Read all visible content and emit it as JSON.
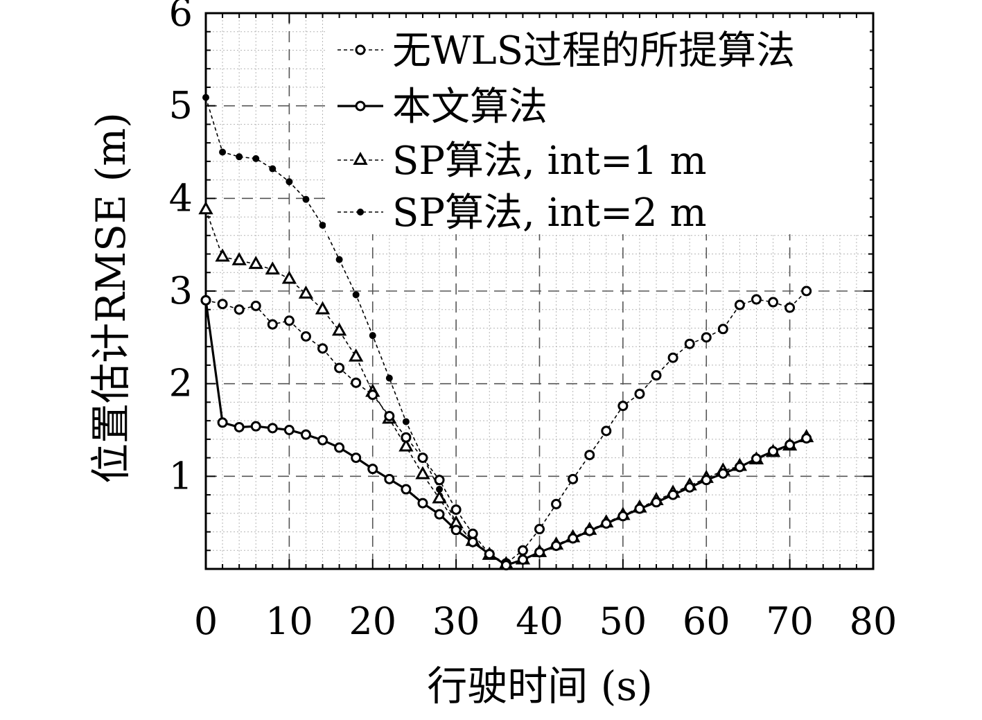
{
  "chart_data": {
    "type": "line",
    "xlabel": "行驶时间 (s)",
    "ylabel": "位置估计RMSE (m)",
    "xlim": [
      0,
      80
    ],
    "ylim": [
      0,
      6
    ],
    "x_ticks": [
      "0",
      "10",
      "20",
      "30",
      "40",
      "50",
      "60",
      "70",
      "80"
    ],
    "y_ticks": [
      "1",
      "2",
      "3",
      "4",
      "5",
      "6"
    ],
    "grid": true,
    "legend_position": "top-right",
    "series": [
      {
        "name": "无WLS过程的所提算法",
        "line": "dashed",
        "marker": "open-circle",
        "color": "#000000",
        "x": [
          0,
          2,
          4,
          6,
          8,
          10,
          12,
          14,
          16,
          18,
          20,
          22,
          24,
          26,
          28,
          30,
          32,
          34,
          36,
          38,
          40,
          42,
          44,
          46,
          48,
          50,
          52,
          54,
          56,
          58,
          60,
          62,
          64,
          66,
          68,
          70,
          72
        ],
        "y": [
          2.9,
          2.86,
          2.8,
          2.84,
          2.64,
          2.68,
          2.51,
          2.38,
          2.17,
          2.01,
          1.88,
          1.65,
          1.42,
          1.2,
          0.96,
          0.64,
          0.38,
          0.16,
          0.06,
          0.2,
          0.43,
          0.7,
          0.97,
          1.23,
          1.49,
          1.76,
          1.89,
          2.09,
          2.28,
          2.43,
          2.5,
          2.59,
          2.85,
          2.91,
          2.88,
          2.82,
          3.0
        ]
      },
      {
        "name": "本文算法",
        "line": "solid",
        "marker": "open-circle",
        "color": "#000000",
        "x": [
          0,
          2,
          4,
          6,
          8,
          10,
          12,
          14,
          16,
          18,
          20,
          22,
          24,
          26,
          28,
          30,
          32,
          34,
          36,
          38,
          40,
          42,
          44,
          46,
          48,
          50,
          52,
          54,
          56,
          58,
          60,
          62,
          64,
          66,
          68,
          70,
          72
        ],
        "y": [
          2.9,
          1.58,
          1.53,
          1.54,
          1.52,
          1.5,
          1.45,
          1.39,
          1.31,
          1.2,
          1.08,
          0.97,
          0.86,
          0.71,
          0.59,
          0.42,
          0.29,
          0.16,
          0.04,
          0.1,
          0.18,
          0.25,
          0.33,
          0.41,
          0.49,
          0.57,
          0.65,
          0.72,
          0.8,
          0.88,
          0.96,
          1.03,
          1.1,
          1.19,
          1.27,
          1.34,
          1.41
        ]
      },
      {
        "name": "SP算法, int=1 m",
        "line": "dashed",
        "marker": "triangle",
        "color": "#000000",
        "x": [
          0,
          2,
          4,
          6,
          8,
          10,
          12,
          14,
          16,
          18,
          20,
          22,
          24,
          26,
          28,
          30,
          32,
          34,
          36,
          38,
          40,
          42,
          44,
          46,
          48,
          50,
          52,
          54,
          56,
          58,
          60,
          62,
          64,
          66,
          68,
          70,
          72
        ],
        "y": [
          3.88,
          3.37,
          3.33,
          3.29,
          3.23,
          3.13,
          2.97,
          2.8,
          2.57,
          2.29,
          1.91,
          1.62,
          1.32,
          1.02,
          0.76,
          0.49,
          0.3,
          0.15,
          0.05,
          0.1,
          0.18,
          0.26,
          0.34,
          0.42,
          0.5,
          0.58,
          0.66,
          0.74,
          0.82,
          0.9,
          0.98,
          1.06,
          1.11,
          1.18,
          1.26,
          1.33,
          1.42
        ]
      },
      {
        "name": "SP算法, int=2 m",
        "line": "dashed",
        "marker": "filled-dot",
        "color": "#000000",
        "x": [
          0,
          2,
          4,
          6,
          8,
          10,
          12,
          14,
          16,
          18,
          20,
          22,
          24,
          26,
          28,
          30,
          32,
          34,
          36
        ],
        "y": [
          5.09,
          4.5,
          4.45,
          4.43,
          4.32,
          4.18,
          3.99,
          3.71,
          3.34,
          2.96,
          2.52,
          2.06,
          1.59,
          1.21,
          0.86,
          0.5,
          0.3,
          0.17,
          0.04
        ]
      }
    ]
  }
}
